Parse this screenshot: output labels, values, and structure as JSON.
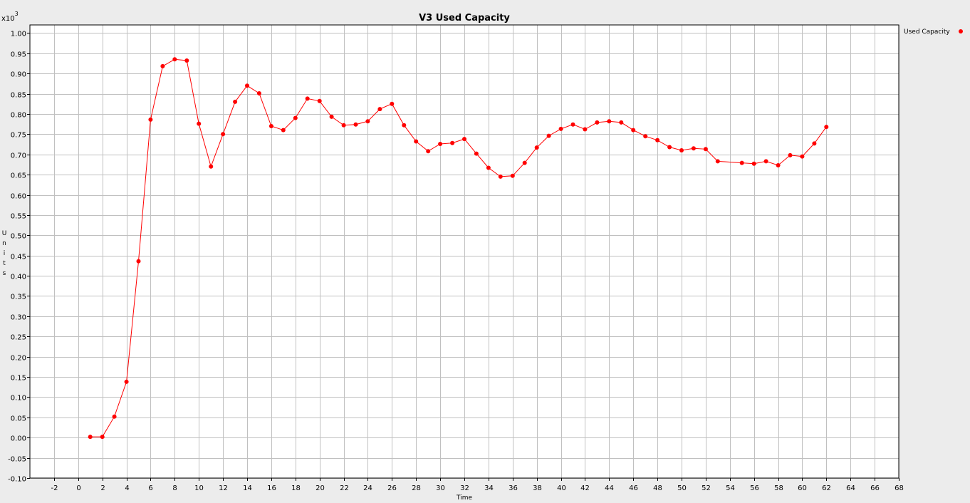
{
  "chart_data": {
    "type": "line",
    "title": "V3 Used Capacity",
    "xlabel": "Time",
    "ylabel": "Units",
    "y_multiplier_label": "x10",
    "y_multiplier_exp": "3",
    "xlim": [
      -4,
      68
    ],
    "ylim": [
      -0.1,
      1.02
    ],
    "x_ticks": [
      -2,
      0,
      2,
      4,
      6,
      8,
      10,
      12,
      14,
      16,
      18,
      20,
      22,
      24,
      26,
      28,
      30,
      32,
      34,
      36,
      38,
      40,
      42,
      44,
      46,
      48,
      50,
      52,
      54,
      56,
      58,
      60,
      62,
      64,
      66,
      68
    ],
    "y_ticks": [
      -0.1,
      -0.05,
      0.0,
      0.05,
      0.1,
      0.15,
      0.2,
      0.25,
      0.3,
      0.35,
      0.4,
      0.45,
      0.5,
      0.55,
      0.6,
      0.65,
      0.7,
      0.75,
      0.8,
      0.85,
      0.9,
      0.95,
      1.0
    ],
    "grid": true,
    "legend_position": "top-right",
    "colors": {
      "series": "#ff0000",
      "grid": "#c0c0c0",
      "plot_bg": "#ffffff",
      "frame": "#000000",
      "page_bg": "#ececec"
    },
    "series": [
      {
        "name": "Used Capacity",
        "x": [
          1,
          2,
          3,
          4,
          5,
          6,
          7,
          8,
          9,
          10,
          11,
          12,
          13,
          14,
          15,
          16,
          17,
          18,
          19,
          20,
          21,
          22,
          23,
          24,
          25,
          26,
          27,
          28,
          29,
          30,
          31,
          32,
          33,
          34,
          35,
          36,
          37,
          38,
          39,
          40,
          41,
          42,
          43,
          44,
          45,
          46,
          47,
          48,
          49,
          50,
          51,
          52,
          53,
          55,
          56,
          57,
          58,
          59,
          60,
          61,
          62
        ],
        "y": [
          0.002,
          0.002,
          0.052,
          0.138,
          0.436,
          0.786,
          0.918,
          0.935,
          0.932,
          0.776,
          0.67,
          0.75,
          0.83,
          0.87,
          0.851,
          0.77,
          0.76,
          0.79,
          0.838,
          0.832,
          0.793,
          0.772,
          0.774,
          0.782,
          0.812,
          0.825,
          0.772,
          0.732,
          0.708,
          0.726,
          0.728,
          0.738,
          0.702,
          0.667,
          0.645,
          0.647,
          0.679,
          0.717,
          0.746,
          0.763,
          0.774,
          0.762,
          0.779,
          0.782,
          0.779,
          0.76,
          0.745,
          0.735,
          0.718,
          0.71,
          0.715,
          0.713,
          0.683,
          0.679,
          0.677,
          0.683,
          0.673,
          0.698,
          0.695,
          0.727,
          0.768
        ]
      }
    ]
  }
}
